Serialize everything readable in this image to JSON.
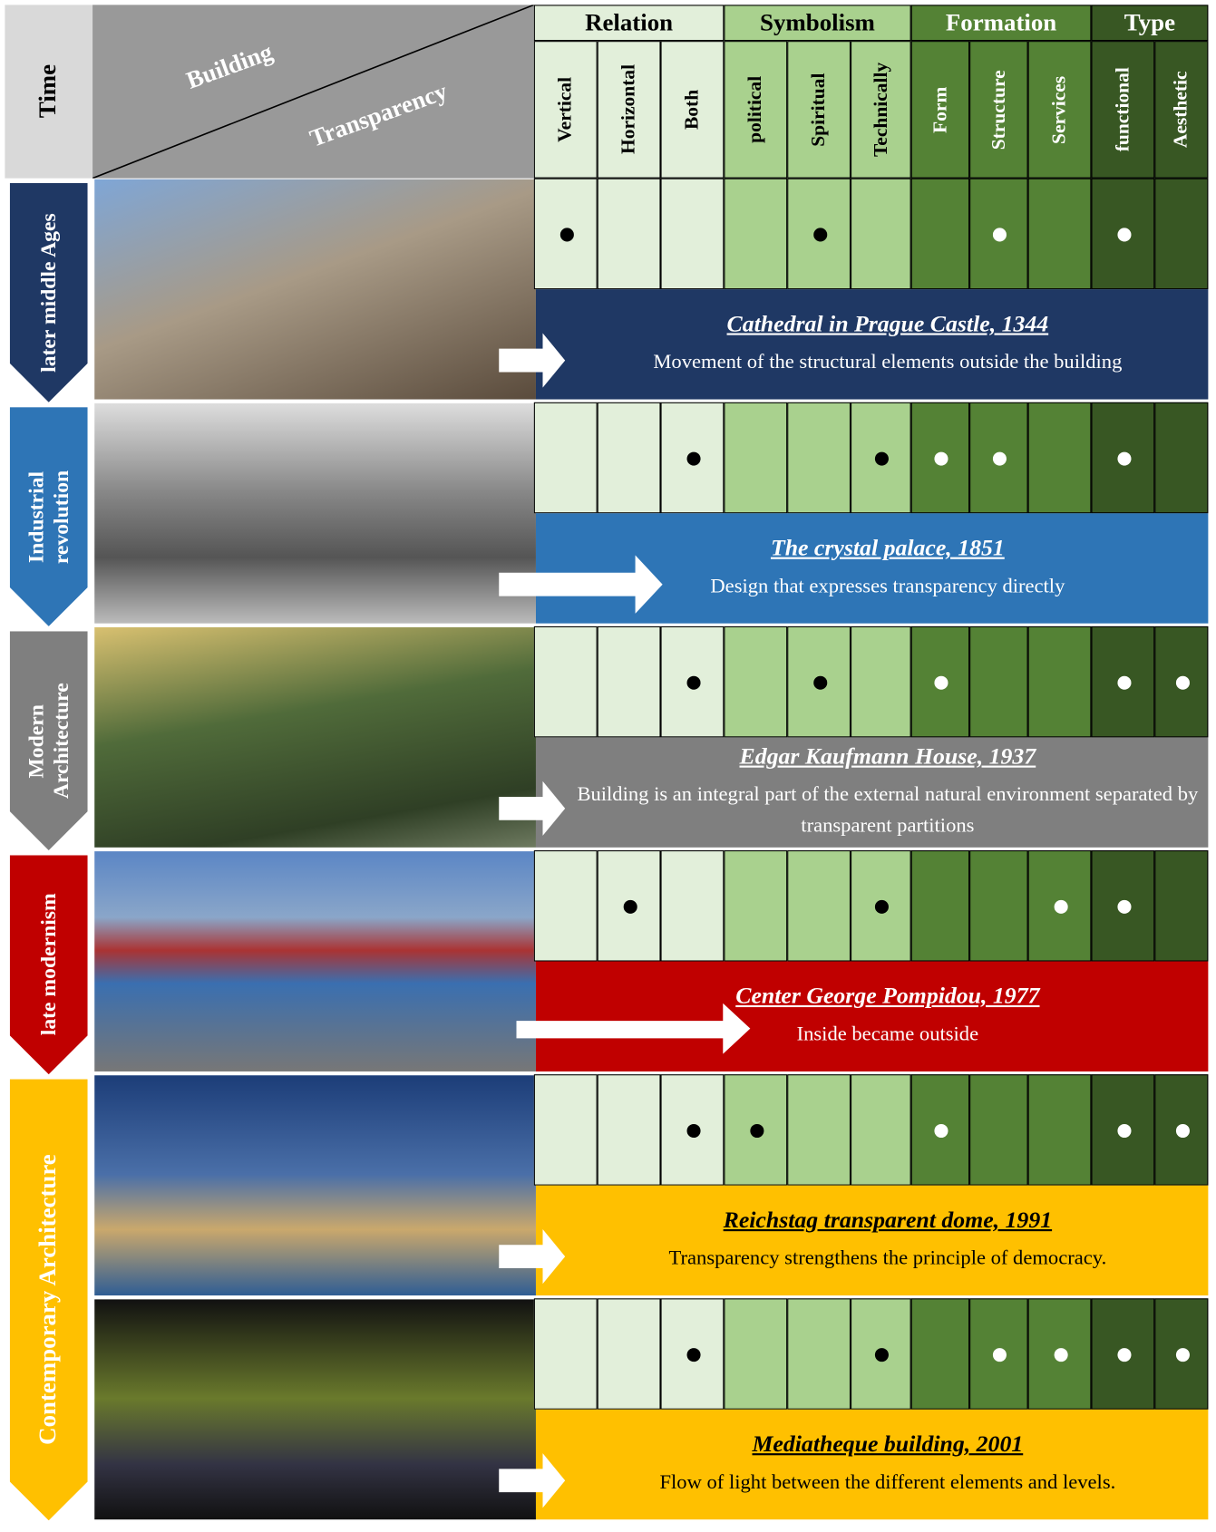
{
  "header": {
    "time": "Time",
    "building": "Building",
    "transparency": "Transparency",
    "groups": [
      {
        "label": "Relation",
        "columns": [
          "Vertical",
          "Horizontal",
          "Both"
        ]
      },
      {
        "label": "Symbolism",
        "columns": [
          "political",
          "Spiritual",
          "Technically"
        ]
      },
      {
        "label": "Formation",
        "columns": [
          "Form",
          "Structure",
          "Services"
        ]
      },
      {
        "label": "Type",
        "columns": [
          "functional",
          "Aesthetic"
        ]
      }
    ]
  },
  "periods": [
    {
      "label": "later middle Ages",
      "color": "#1f3864",
      "entries": [
        {
          "title": "Cathedral in Prague Castle, 1344",
          "description": "Movement of the structural elements outside the building",
          "marks": [
            true,
            false,
            false,
            false,
            true,
            false,
            false,
            true,
            false,
            true,
            false
          ]
        }
      ]
    },
    {
      "label": "Industrial revolution",
      "color": "#2e75b6",
      "entries": [
        {
          "title": "The crystal palace, 1851",
          "description": "Design that expresses transparency directly",
          "marks": [
            false,
            false,
            true,
            false,
            false,
            true,
            true,
            true,
            false,
            true,
            false
          ]
        }
      ]
    },
    {
      "label": "Modern Architecture",
      "color": "#7f7f7f",
      "entries": [
        {
          "title": "Edgar Kaufmann House, 1937",
          "description": "Building is an integral part of the external natural environment separated by transparent partitions",
          "marks": [
            false,
            false,
            true,
            false,
            true,
            false,
            true,
            false,
            false,
            true,
            true
          ]
        }
      ]
    },
    {
      "label": "late modernism",
      "color": "#c00000",
      "entries": [
        {
          "title": "Center George Pompidou, 1977",
          "description": "Inside became outside",
          "marks": [
            false,
            true,
            false,
            false,
            false,
            true,
            false,
            false,
            true,
            true,
            false
          ]
        }
      ]
    },
    {
      "label": "Contemporary Architecture",
      "color": "#ffc000",
      "entries": [
        {
          "title": "Reichstag transparent dome, 1991",
          "description": "Transparency strengthens the principle of democracy.",
          "marks": [
            false,
            false,
            true,
            true,
            false,
            false,
            true,
            false,
            false,
            true,
            true
          ]
        },
        {
          "title": "Mediatheque building, 2001",
          "description": "Flow of light between the different elements and levels.",
          "marks": [
            false,
            false,
            true,
            false,
            false,
            true,
            false,
            true,
            true,
            true,
            true
          ]
        }
      ]
    }
  ]
}
